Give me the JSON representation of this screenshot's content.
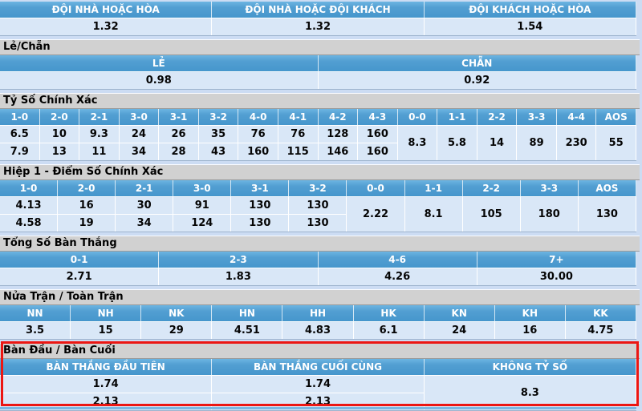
{
  "page": {
    "background": "#ccdcf3"
  },
  "colors": {
    "header_bar_blue": "#4d9ed3",
    "header_bar_blue_top": "#6cb5e2",
    "odds_cell_bg": "#d9e7f7",
    "section_title_bg": "#d1d1d1",
    "page_bg": "#ccdcf3",
    "highlight_border_red": "#ec1612",
    "header_text": "#ffffff",
    "odds_text": "#050505"
  },
  "sections": {
    "double_chance": {
      "headers": [
        "ĐỘI NHÀ HOẶC HÒA",
        "ĐỘI NHÀ HOẶC ĐỘI KHÁCH",
        "ĐỘI KHÁCH HOẶC HÒA"
      ],
      "values": [
        "1.32",
        "1.32",
        "1.54"
      ]
    },
    "odd_even": {
      "title": "Lẻ/Chẵn",
      "headers": [
        "LẺ",
        "CHẴN"
      ],
      "values": [
        "0.98",
        "0.92"
      ]
    },
    "correct_score": {
      "title": "Tỷ Số Chính Xác",
      "headers": [
        "1-0",
        "2-0",
        "2-1",
        "3-0",
        "3-1",
        "3-2",
        "4-0",
        "4-1",
        "4-2",
        "4-3",
        "0-0",
        "1-1",
        "2-2",
        "3-3",
        "4-4",
        "AOS"
      ],
      "row1": [
        "6.5",
        "10",
        "9.3",
        "24",
        "26",
        "35",
        "76",
        "76",
        "128",
        "160"
      ],
      "row2": [
        "7.9",
        "13",
        "11",
        "34",
        "28",
        "43",
        "160",
        "115",
        "146",
        "160"
      ],
      "merged": [
        "8.3",
        "5.8",
        "14",
        "89",
        "230",
        "55"
      ]
    },
    "first_half_correct_score": {
      "title": "Hiệp 1 - Điểm Số Chính Xác",
      "headers": [
        "1-0",
        "2-0",
        "2-1",
        "3-0",
        "3-1",
        "3-2",
        "0-0",
        "1-1",
        "2-2",
        "3-3",
        "AOS"
      ],
      "row1": [
        "4.13",
        "16",
        "30",
        "91",
        "130",
        "130"
      ],
      "row2": [
        "4.58",
        "19",
        "34",
        "124",
        "130",
        "130"
      ],
      "merged": [
        "2.22",
        "8.1",
        "105",
        "180",
        "130"
      ]
    },
    "total_goals": {
      "title": "Tổng Số Bàn Thắng",
      "headers": [
        "0-1",
        "2-3",
        "4-6",
        "7+"
      ],
      "values": [
        "2.71",
        "1.83",
        "4.26",
        "30.00"
      ]
    },
    "half_full_time": {
      "title": "Nửa Trận / Toàn Trận",
      "headers": [
        "NN",
        "NH",
        "NK",
        "HN",
        "HH",
        "HK",
        "KN",
        "KH",
        "KK"
      ],
      "values": [
        "3.5",
        "15",
        "29",
        "4.51",
        "4.83",
        "6.1",
        "24",
        "16",
        "4.75"
      ]
    },
    "first_last_goal": {
      "title": "Bàn Đầu / Bàn Cuối",
      "headers": [
        "BÀN THẮNG ĐẦU TIÊN",
        "BÀN THẮNG CUỐI CÙNG",
        "KHÔNG TỶ SỐ"
      ],
      "row1": [
        "1.74",
        "1.74"
      ],
      "row2": [
        "2.13",
        "2.13"
      ],
      "merged": [
        "8.3"
      ],
      "highlighted": true
    }
  }
}
